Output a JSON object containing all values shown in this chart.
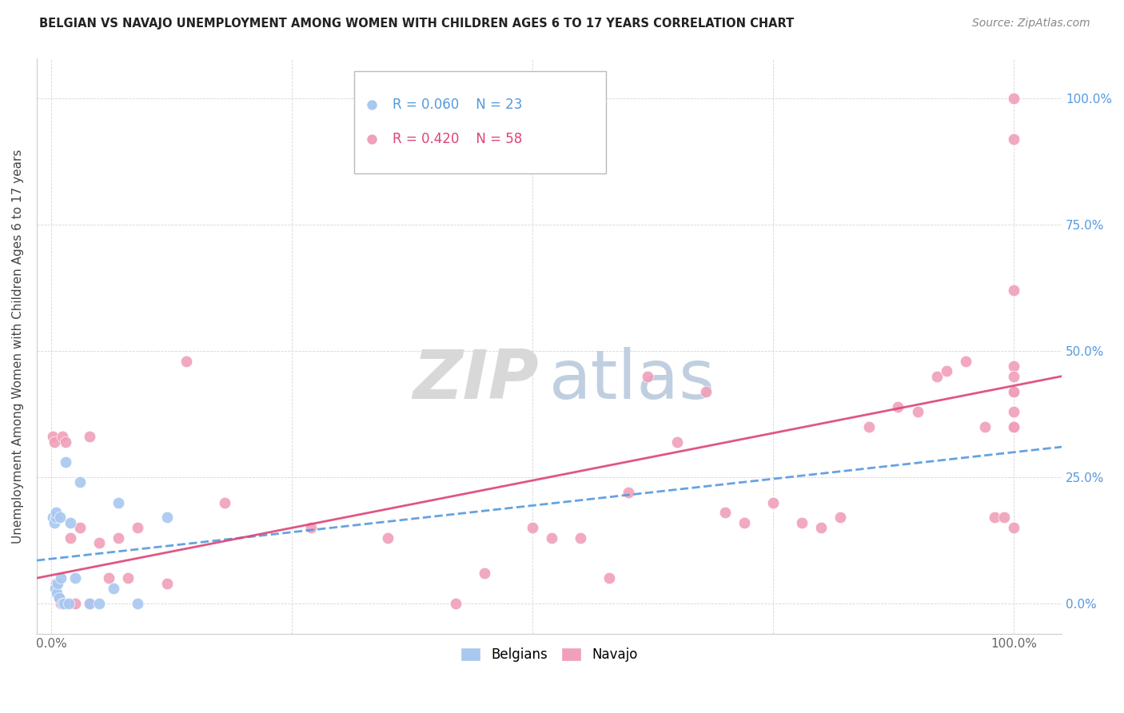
{
  "title": "BELGIAN VS NAVAJO UNEMPLOYMENT AMONG WOMEN WITH CHILDREN AGES 6 TO 17 YEARS CORRELATION CHART",
  "source": "Source: ZipAtlas.com",
  "ylabel": "Unemployment Among Women with Children Ages 6 to 17 years",
  "belgian_R": "R = 0.060",
  "belgian_N": "N = 23",
  "navajo_R": "R = 0.420",
  "navajo_N": "N = 58",
  "belgian_color": "#a8c8f0",
  "navajo_color": "#f0a0b8",
  "belgian_line_color": "#5599dd",
  "navajo_line_color": "#dd4477",
  "belgian_x": [
    0.002,
    0.003,
    0.004,
    0.005,
    0.005,
    0.006,
    0.007,
    0.008,
    0.009,
    0.01,
    0.012,
    0.013,
    0.015,
    0.018,
    0.02,
    0.025,
    0.03,
    0.04,
    0.05,
    0.065,
    0.07,
    0.09,
    0.12
  ],
  "belgian_y": [
    0.17,
    0.16,
    0.03,
    0.17,
    0.18,
    0.02,
    0.04,
    0.01,
    0.17,
    0.05,
    0.0,
    0.0,
    0.28,
    0.0,
    0.16,
    0.05,
    0.24,
    0.0,
    0.0,
    0.03,
    0.2,
    0.0,
    0.17
  ],
  "navajo_x": [
    0.002,
    0.003,
    0.005,
    0.008,
    0.01,
    0.012,
    0.015,
    0.02,
    0.025,
    0.03,
    0.04,
    0.04,
    0.05,
    0.06,
    0.07,
    0.08,
    0.09,
    0.12,
    0.14,
    0.18,
    0.27,
    0.35,
    0.42,
    0.45,
    0.5,
    0.52,
    0.55,
    0.58,
    0.6,
    0.62,
    0.65,
    0.68,
    0.7,
    0.72,
    0.75,
    0.78,
    0.8,
    0.82,
    0.85,
    0.88,
    0.9,
    0.92,
    0.93,
    0.95,
    0.97,
    0.98,
    0.99,
    1.0,
    1.0,
    1.0,
    1.0,
    1.0,
    1.0,
    1.0,
    1.0,
    1.0,
    1.0,
    1.0
  ],
  "navajo_y": [
    0.33,
    0.32,
    0.04,
    0.01,
    0.0,
    0.33,
    0.32,
    0.13,
    0.0,
    0.15,
    0.0,
    0.33,
    0.12,
    0.05,
    0.13,
    0.05,
    0.15,
    0.04,
    0.48,
    0.2,
    0.15,
    0.13,
    0.0,
    0.06,
    0.15,
    0.13,
    0.13,
    0.05,
    0.22,
    0.45,
    0.32,
    0.42,
    0.18,
    0.16,
    0.2,
    0.16,
    0.15,
    0.17,
    0.35,
    0.39,
    0.38,
    0.45,
    0.46,
    0.48,
    0.35,
    0.17,
    0.17,
    1.0,
    0.47,
    0.45,
    0.42,
    0.38,
    0.35,
    0.42,
    0.15,
    0.62,
    0.92,
    0.35
  ],
  "bel_line_x0": 0.0,
  "bel_line_x1": 1.0,
  "bel_line_y0": 0.085,
  "bel_line_y1": 0.31,
  "nav_line_x0": 0.0,
  "nav_line_x1": 1.0,
  "nav_line_y0": 0.05,
  "nav_line_y1": 0.45,
  "xlim_min": -0.015,
  "xlim_max": 1.05,
  "ylim_min": -0.06,
  "ylim_max": 1.08,
  "xtick_vals": [
    0.0,
    0.25,
    0.5,
    0.75,
    1.0
  ],
  "ytick_vals": [
    0.0,
    0.25,
    0.5,
    0.75,
    1.0
  ],
  "right_yticklabels": [
    "0.0%",
    "25.0%",
    "50.0%",
    "75.0%",
    "100.0%"
  ],
  "watermark_zip_color": "#d8d8d8",
  "watermark_atlas_color": "#c0cfe0"
}
